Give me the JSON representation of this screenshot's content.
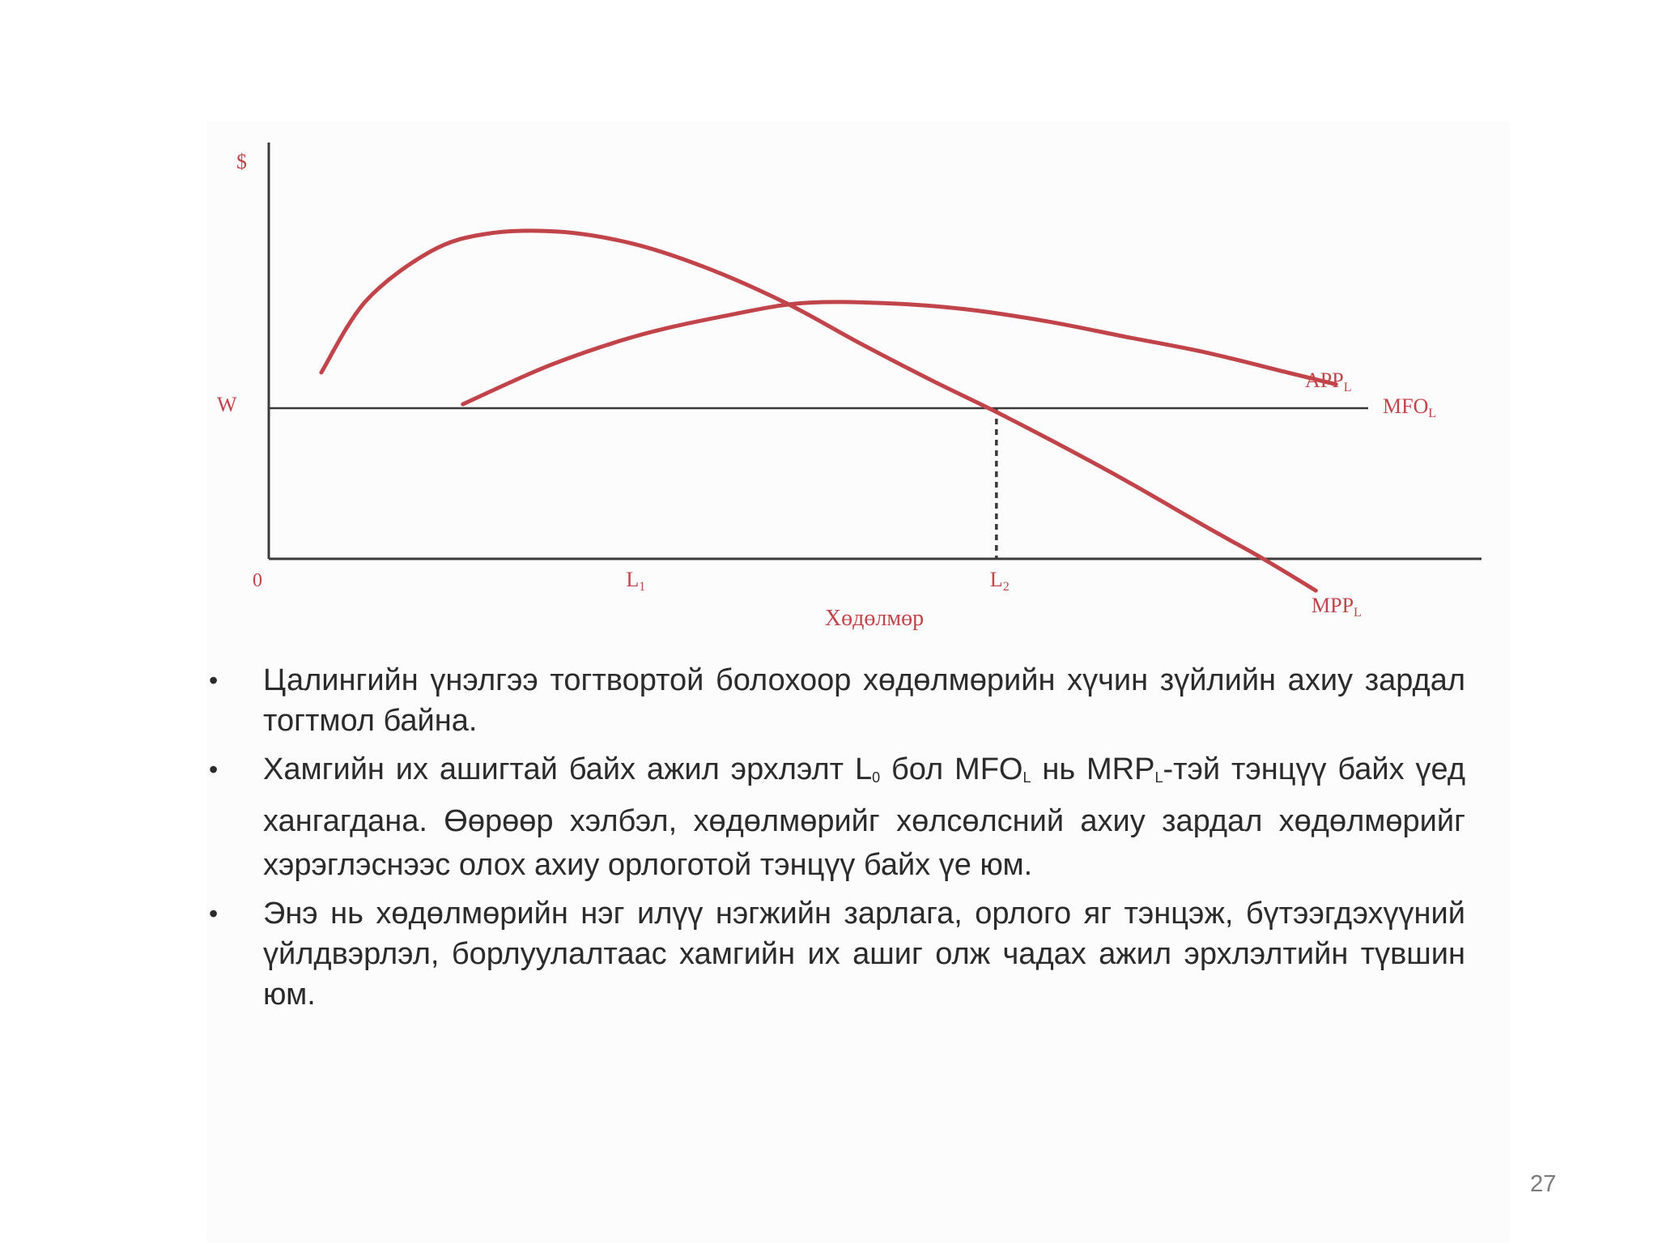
{
  "chart_data": {
    "type": "line",
    "title": "",
    "ylabel": "$",
    "xlabel": "Хөдөлмөр",
    "origin_label": "0",
    "x_ticks": [
      {
        "label": "L",
        "sub": "1",
        "x": 4.5
      },
      {
        "label": "L",
        "sub": "2",
        "x": 9
      }
    ],
    "xlim": [
      0,
      15
    ],
    "ylim": [
      0,
      10.5
    ],
    "wage_label": "W",
    "wage_level": 3.8,
    "series": [
      {
        "name": "APP",
        "sub": "L",
        "x": [
          2.4,
          3.5,
          4.6,
          5.7,
          6.6,
          7.6,
          8.6,
          9.6,
          10.6,
          11.6,
          12.6,
          13.2
        ],
        "y": [
          3.9,
          4.9,
          5.65,
          6.15,
          6.45,
          6.45,
          6.3,
          6.0,
          5.6,
          5.2,
          4.7,
          4.4
        ]
      },
      {
        "name": "MPP",
        "sub": "L",
        "x": [
          0.65,
          1.2,
          2.0,
          2.7,
          3.6,
          4.5,
          5.4,
          6.4,
          7.3,
          8.2,
          9.1,
          10.4,
          11.6,
          12.3,
          12.95
        ],
        "y": [
          4.7,
          6.5,
          7.75,
          8.2,
          8.25,
          7.95,
          7.35,
          6.45,
          5.45,
          4.5,
          3.6,
          2.2,
          0.8,
          0.0,
          -0.8
        ]
      }
    ],
    "wage_line_name": "MFO",
    "wage_line_sub": "L",
    "colors": {
      "curves": "#c0444a",
      "axes": "#3a3a3a",
      "text": "#2b2b2b"
    }
  },
  "bullets": [
    {
      "text": "Цалингийн үнэлгээ тогтвортой болохоор хөдөлмөрийн хүчин зүйлийн ахиу зардал тогтмол байна."
    },
    {
      "parts": [
        {
          "t": "Хамгийн их ашигтай байх ажил эрхлэлт L"
        },
        {
          "sub": "0"
        },
        {
          "t": " бол MFO"
        },
        {
          "sub": "L"
        },
        {
          "t": " нь MRP"
        },
        {
          "sub": "L"
        },
        {
          "t": "-тэй тэнцүү байх үед хангагдана.  Өөрөөр хэлбэл, хөдөлмөрийг хөлсөлсний ахиу зардал хөдөлмөрийг хэрэглэснээс олох ахиу орлоготой тэнцүү байх үе юм."
        }
      ]
    },
    {
      "text": "Энэ нь хөдөлмөрийн нэг илүү нэгжийн зарлага, орлого яг тэнцэж, бүтээгдэхүүний үйлдвэрлэл, борлуулалтаас хамгийн их ашиг олж чадах ажил эрхлэлтийн түвшин юм."
    }
  ],
  "page_number": "27"
}
